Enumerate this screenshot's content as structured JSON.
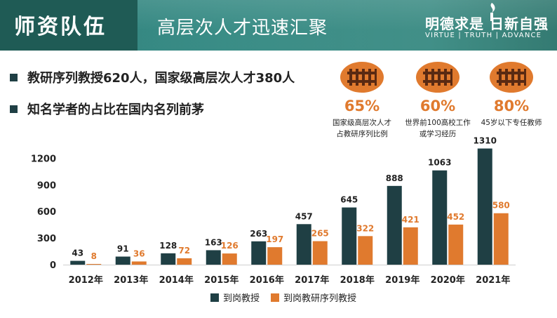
{
  "header": {
    "title": "师资队伍",
    "subtitle": "高层次人才迅速汇聚",
    "motto_cn": "明德求是 日新自强",
    "motto_en": "VIRTUE | TRUTH | ADVANCE"
  },
  "bullets": [
    "教研序列教授620人，国家级高层次人才380人",
    "知名学者的占比在国内名列前茅"
  ],
  "stats": [
    {
      "percent": "65%",
      "desc_line1": "国家级高层次人才",
      "desc_line2": "占教研序列比例",
      "icon": "people-group-icon"
    },
    {
      "percent": "60%",
      "desc_line1": "世界前100高校工作",
      "desc_line2": "或学习经历",
      "icon": "people-group-icon"
    },
    {
      "percent": "80%",
      "desc_line1": "45岁以下专任教师",
      "desc_line2": "",
      "icon": "people-group-icon"
    }
  ],
  "colors": {
    "series1": "#1f3f44",
    "series2": "#e07a2e",
    "accent": "#e07a2e",
    "header": "#2f7f79"
  },
  "chart_data": {
    "type": "bar",
    "categories": [
      "2012年",
      "2013年",
      "2014年",
      "2015年",
      "2016年",
      "2017年",
      "2018年",
      "2019年",
      "2020年",
      "2021年"
    ],
    "series": [
      {
        "name": "到岗教授",
        "values": [
          43,
          91,
          128,
          163,
          263,
          457,
          645,
          888,
          1063,
          1310
        ]
      },
      {
        "name": "到岗教研序列教授",
        "values": [
          8,
          36,
          72,
          126,
          197,
          265,
          322,
          421,
          452,
          580
        ]
      }
    ],
    "yticks": [
      0,
      300,
      600,
      900,
      1200
    ],
    "ylim": [
      0,
      1350
    ],
    "legend": "bottom",
    "grid": false
  }
}
